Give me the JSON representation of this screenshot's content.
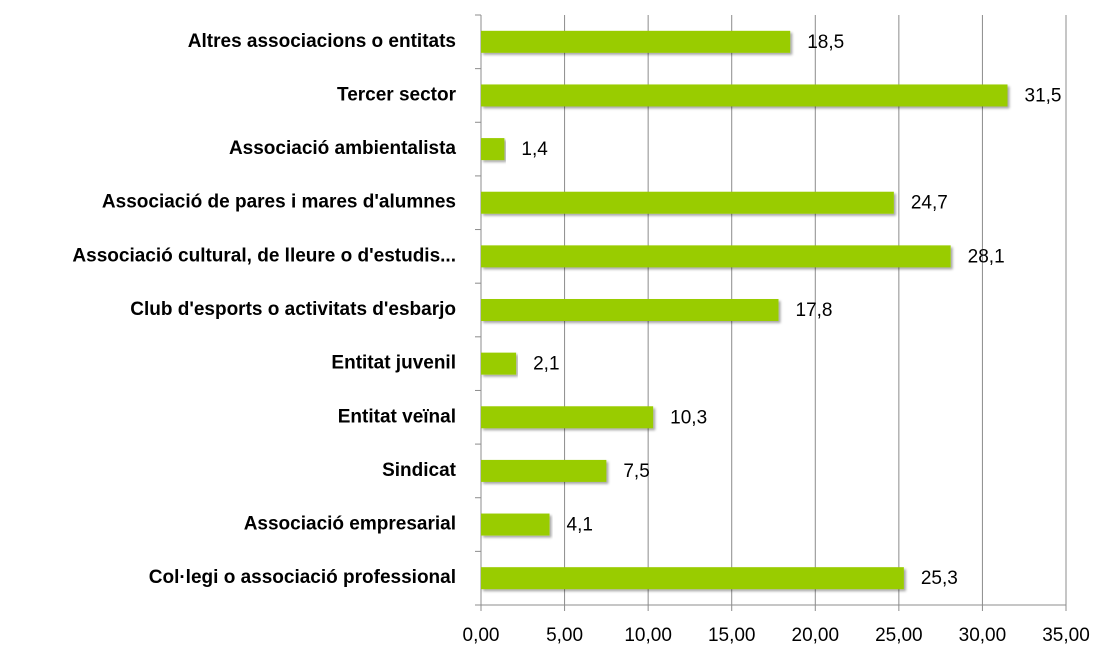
{
  "chart_data": {
    "type": "bar",
    "orientation": "horizontal",
    "categories": [
      "Altres associacions o entitats",
      "Tercer sector",
      "Associació ambientalista",
      "Associació de pares i mares d'alumnes",
      "Associació cultural, de lleure o d'estudis...",
      "Club d'esports o activitats d'esbarjo",
      "Entitat juvenil",
      "Entitat veïnal",
      "Sindicat",
      "Associació empresarial",
      "Col·legi o associació professional"
    ],
    "values": [
      18.5,
      31.5,
      1.4,
      24.7,
      28.1,
      17.8,
      2.1,
      10.3,
      7.5,
      4.1,
      25.3
    ],
    "value_labels": [
      "18,5",
      "31,5",
      "1,4",
      "24,7",
      "28,1",
      "17,8",
      "2,1",
      "10,3",
      "7,5",
      "4,1",
      "25,3"
    ],
    "color": "#99cc00",
    "xlim": [
      0,
      35
    ],
    "xticks": [
      {
        "value": 0,
        "label": "0,00"
      },
      {
        "value": 5,
        "label": "5,00"
      },
      {
        "value": 10,
        "label": "10,00"
      },
      {
        "value": 15,
        "label": "15,00"
      },
      {
        "value": 20,
        "label": "20,00"
      },
      {
        "value": 25,
        "label": "25,00"
      },
      {
        "value": 30,
        "label": "30,00"
      },
      {
        "value": 35,
        "label": "35,00"
      }
    ],
    "grid": true
  }
}
